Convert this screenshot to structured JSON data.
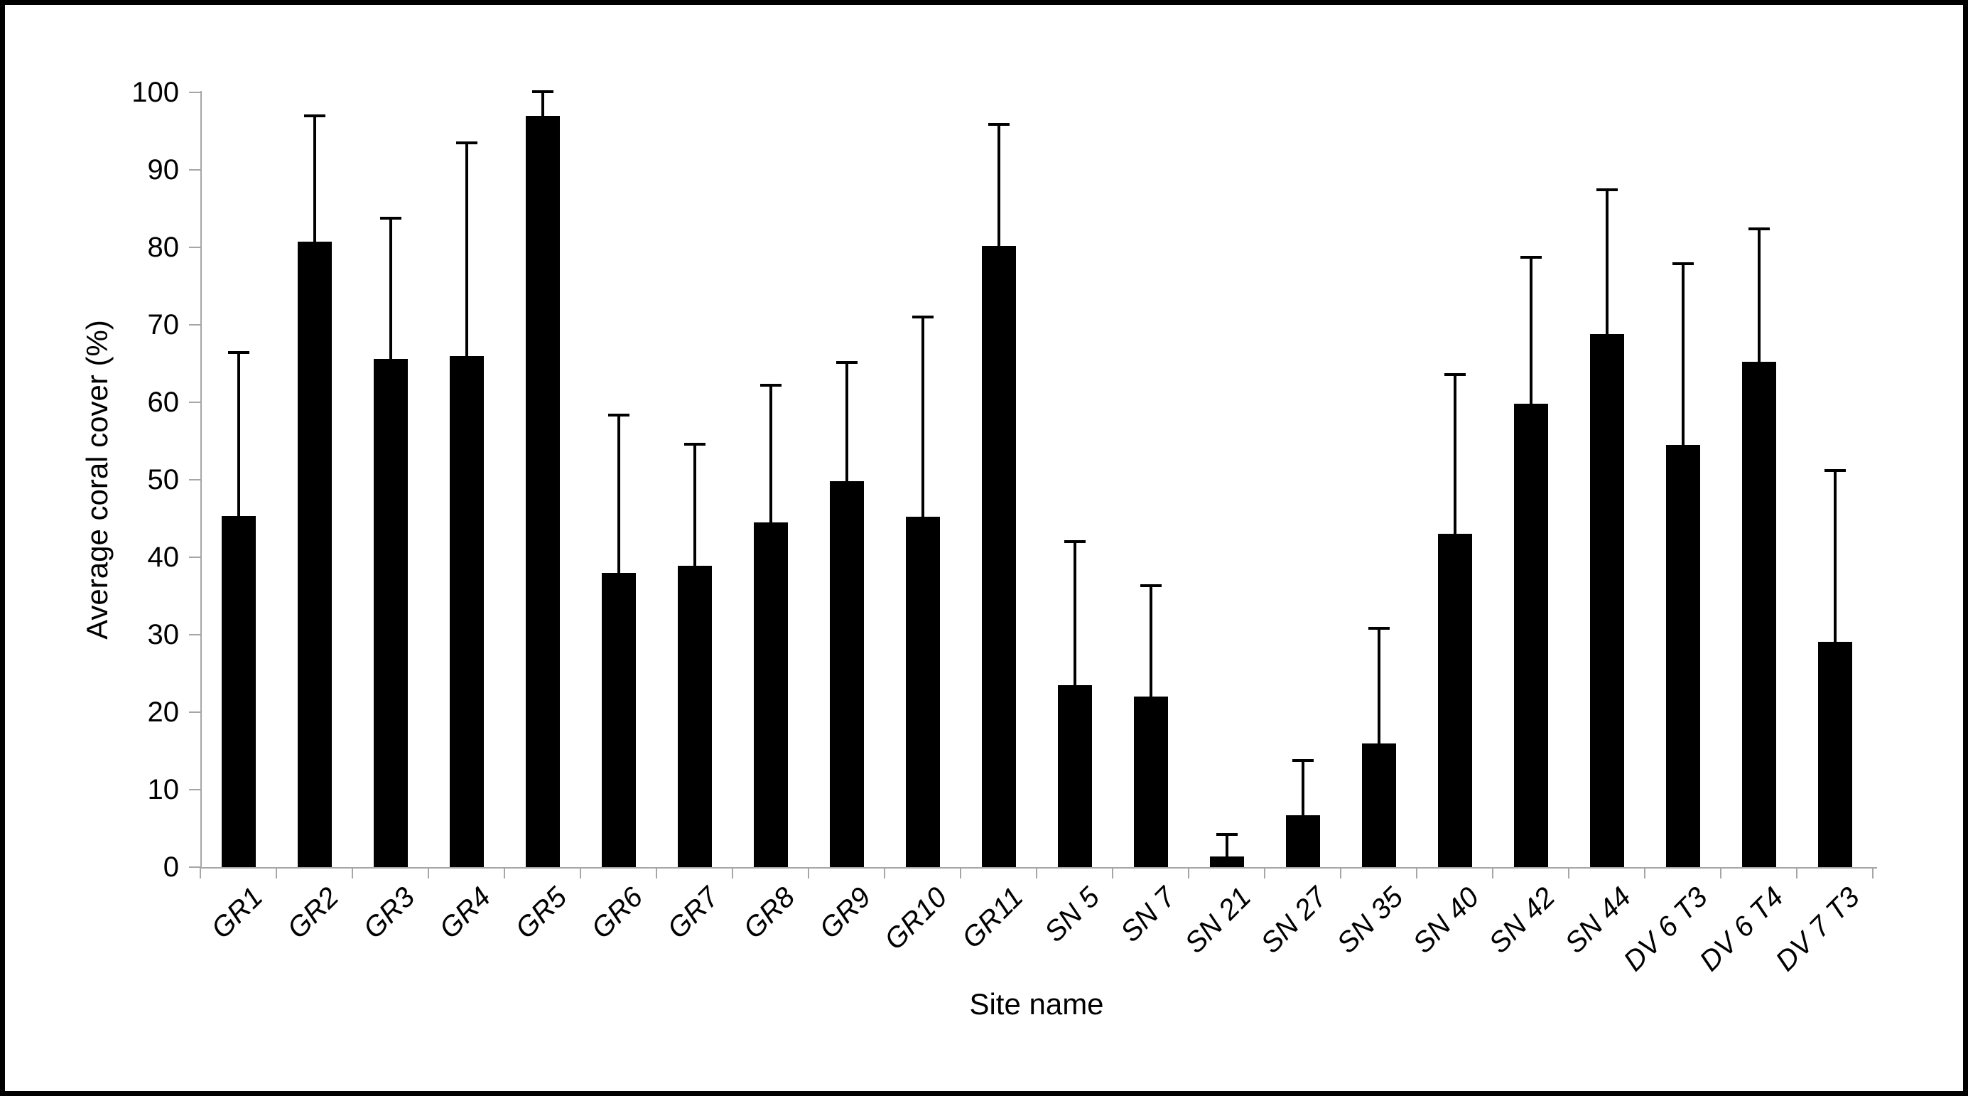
{
  "chart_data": {
    "type": "bar",
    "title": "",
    "xlabel": "Site name",
    "ylabel": "Average coral cover (%)",
    "ylim": [
      0,
      100
    ],
    "yticks": [
      0,
      10,
      20,
      30,
      40,
      50,
      60,
      70,
      80,
      90,
      100
    ],
    "grid": false,
    "legend": "none",
    "bar_color": "#000000",
    "axis_color": "#a6a6a6",
    "background_color": "#ffffff",
    "frame_color": "#000000",
    "error_direction": "upper",
    "categories": [
      "GR1",
      "GR2",
      "GR3",
      "GR4",
      "GR5",
      "GR6",
      "GR7",
      "GR8",
      "GR9",
      "GR10",
      "GR11",
      "SN 5",
      "SN 7",
      "SN 21",
      "SN 27",
      "SN 35",
      "SN 40",
      "SN 42",
      "SN 44",
      "DV 6 T3",
      "DV 6 T4",
      "DV 7 T3"
    ],
    "values": [
      45.3,
      80.7,
      65.6,
      66.0,
      97.0,
      38.0,
      38.9,
      44.5,
      49.8,
      45.2,
      80.2,
      23.5,
      22.0,
      1.4,
      6.7,
      16.0,
      43.0,
      59.8,
      68.8,
      54.5,
      65.2,
      29.1
    ],
    "error_sd": [
      21.3,
      16.5,
      18.3,
      27.7,
      3.3,
      20.5,
      15.9,
      17.9,
      15.5,
      26.0,
      15.9,
      18.7,
      14.5,
      3.0,
      7.2,
      15.0,
      20.8,
      19.1,
      18.8,
      23.6,
      17.4,
      22.3
    ]
  }
}
